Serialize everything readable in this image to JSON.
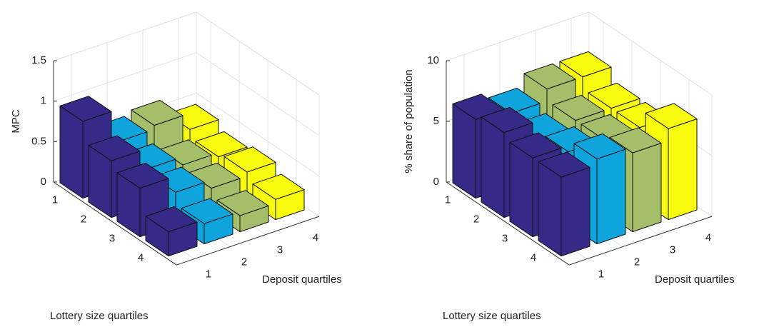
{
  "chart_data": [
    {
      "type": "bar3d",
      "zlabel": "MPC",
      "xlabel": "Deposit quartiles",
      "ylabel": "Lottery size quartiles",
      "xticks": [
        1,
        2,
        3,
        4
      ],
      "yticks": [
        1,
        2,
        3,
        4
      ],
      "zlim": [
        0,
        1.5
      ],
      "zticks": [
        0,
        0.5,
        1,
        1.5
      ],
      "grid": true,
      "series": [
        {
          "color": "#352a87",
          "values": [
            0.95,
            0.7,
            0.6,
            0.3
          ]
        },
        {
          "color": "#0fa5dc",
          "values": [
            0.55,
            0.45,
            0.4,
            0.25
          ]
        },
        {
          "color": "#a5be6a",
          "values": [
            0.6,
            0.35,
            0.3,
            0.2
          ]
        },
        {
          "color": "#f9fb0e",
          "values": [
            0.4,
            0.3,
            0.35,
            0.25
          ]
        }
      ]
    },
    {
      "type": "bar3d",
      "zlabel": "% share of population",
      "xlabel": "Deposit quartiles",
      "ylabel": "Lottery size quartiles",
      "xticks": [
        1,
        2,
        3,
        4
      ],
      "yticks": [
        1,
        2,
        3,
        4
      ],
      "zlim": [
        0,
        10
      ],
      "zticks": [
        0,
        5,
        10
      ],
      "grid": true,
      "series": [
        {
          "color": "#352a87",
          "values": [
            6.5,
            7,
            6.5,
            6.5
          ]
        },
        {
          "color": "#0fa5dc",
          "values": [
            6,
            5.5,
            6,
            7
          ]
        },
        {
          "color": "#a5be6a",
          "values": [
            7,
            6,
            6,
            6.5
          ]
        },
        {
          "color": "#f9fb0e",
          "values": [
            7,
            6,
            6,
            7.5
          ]
        }
      ]
    }
  ]
}
